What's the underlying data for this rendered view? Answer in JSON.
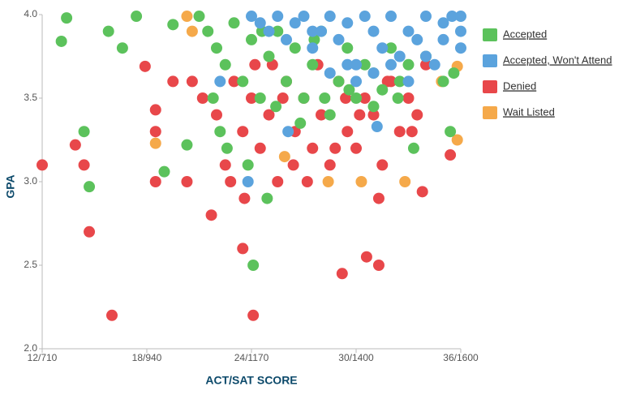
{
  "chart_data": {
    "type": "scatter",
    "xlabel": "ACT/SAT SCORE",
    "ylabel": "GPA",
    "xlim": [
      12,
      36
    ],
    "ylim": [
      2,
      4
    ],
    "xticks": [
      {
        "value": 12,
        "label": "12/710"
      },
      {
        "value": 18,
        "label": "18/940"
      },
      {
        "value": 24,
        "label": "24/1170"
      },
      {
        "value": 30,
        "label": "30/1400"
      },
      {
        "value": 36,
        "label": "36/1600"
      }
    ],
    "yticks": [
      {
        "value": 2,
        "label": "2.0"
      },
      {
        "value": 2.5,
        "label": "2.5"
      },
      {
        "value": 3,
        "label": "3.0"
      },
      {
        "value": 3.5,
        "label": "3.5"
      },
      {
        "value": 4,
        "label": "4.0"
      }
    ],
    "series": [
      {
        "name": "Accepted",
        "color": "#5cc25c",
        "x": [
          13.1,
          13.4,
          14.4,
          14.7,
          15.8,
          16.6,
          17.4,
          19.0,
          19.5,
          20.3,
          24.1,
          24.9,
          35.4,
          33.3,
          21,
          21.5,
          22,
          22.5,
          23,
          23.5,
          24,
          24.5,
          25,
          25.5,
          26,
          26.5,
          27,
          27.5,
          28,
          28.5,
          29,
          29.5,
          30,
          30.5,
          31,
          31.5,
          32,
          32.5,
          33,
          34,
          35,
          22.2,
          23.8,
          25.4,
          26.8,
          28.2,
          29.6,
          31,
          32.4,
          24.6,
          27.6,
          21.8,
          22.6,
          35.6
        ],
        "values": [
          3.84,
          3.98,
          3.3,
          2.97,
          3.9,
          3.8,
          3.99,
          3.06,
          3.94,
          3.22,
          2.5,
          2.9,
          3.3,
          3.2,
          3.99,
          3.9,
          3.8,
          3.7,
          3.95,
          3.6,
          3.85,
          3.5,
          3.75,
          3.9,
          3.6,
          3.8,
          3.5,
          3.7,
          3.9,
          3.4,
          3.6,
          3.8,
          3.5,
          3.7,
          3.65,
          3.55,
          3.8,
          3.6,
          3.7,
          3.75,
          3.6,
          3.3,
          3.1,
          3.45,
          3.35,
          3.5,
          3.55,
          3.45,
          3.5,
          3.9,
          3.85,
          3.5,
          3.2,
          3.65
        ]
      },
      {
        "name": "Accepted, Won't Attend",
        "color": "#5ba3dd",
        "x": [
          23.8,
          22.2,
          26.1,
          31.2,
          24,
          24.5,
          25,
          25.5,
          26,
          26.5,
          27,
          27.5,
          28,
          28.5,
          29,
          29.5,
          30,
          30.5,
          31,
          31.5,
          32,
          32.5,
          33,
          33.5,
          34,
          34.5,
          35,
          35.5,
          36,
          36,
          36,
          30,
          31,
          32,
          33,
          34,
          35,
          28.5,
          27.5,
          29.5
        ],
        "values": [
          3.0,
          3.6,
          3.3,
          3.33,
          3.99,
          3.95,
          3.9,
          3.99,
          3.85,
          3.95,
          3.99,
          3.8,
          3.9,
          3.99,
          3.85,
          3.95,
          3.7,
          3.99,
          3.9,
          3.8,
          3.99,
          3.75,
          3.9,
          3.85,
          3.99,
          3.7,
          3.95,
          3.99,
          3.9,
          3.8,
          3.99,
          3.6,
          3.65,
          3.7,
          3.6,
          3.75,
          3.85,
          3.65,
          3.9,
          3.7
        ]
      },
      {
        "name": "Denied",
        "color": "#e8474a",
        "x": [
          12.0,
          13.9,
          14.4,
          14.7,
          16.0,
          17.9,
          18.5,
          18.5,
          18.5,
          19.5,
          20.3,
          21.7,
          23.5,
          24.1,
          29.2,
          30.6,
          31.3,
          31.3,
          33.8,
          35.4,
          22,
          22.5,
          23,
          23.5,
          24,
          24.5,
          25,
          25.5,
          26,
          26.5,
          27,
          27.5,
          28,
          28.5,
          29,
          29.5,
          30,
          30.5,
          31,
          31.5,
          32,
          32.5,
          33,
          33.5,
          34,
          22.8,
          24.2,
          25.8,
          27.2,
          28.8,
          30.2,
          31.8,
          33.2,
          26.4,
          27.8,
          29.4,
          21.2,
          20.6,
          23.6,
          25.2
        ],
        "values": [
          3.1,
          3.22,
          3.1,
          2.7,
          2.2,
          3.69,
          3.43,
          3.3,
          3.0,
          3.6,
          3.0,
          2.8,
          2.6,
          2.2,
          2.45,
          2.55,
          2.5,
          2.9,
          2.94,
          3.16,
          3.4,
          3.1,
          3.6,
          3.3,
          3.5,
          3.2,
          3.4,
          3.0,
          3.6,
          3.3,
          3.5,
          3.2,
          3.4,
          3.1,
          3.6,
          3.3,
          3.2,
          3.5,
          3.4,
          3.1,
          3.6,
          3.3,
          3.5,
          3.4,
          3.7,
          3.0,
          3.7,
          3.5,
          3.0,
          3.2,
          3.4,
          3.6,
          3.3,
          3.1,
          3.7,
          3.5,
          3.5,
          3.6,
          2.9,
          3.7
        ]
      },
      {
        "name": "Wait Listed",
        "color": "#f5a94a",
        "x": [
          18.5,
          20.3,
          20.6,
          25.9,
          28.4,
          32.8,
          35.8,
          35.8,
          34.9,
          30.3
        ],
        "values": [
          3.23,
          3.99,
          3.9,
          3.15,
          3.0,
          3.0,
          3.25,
          3.69,
          3.6,
          3.0
        ]
      }
    ]
  }
}
